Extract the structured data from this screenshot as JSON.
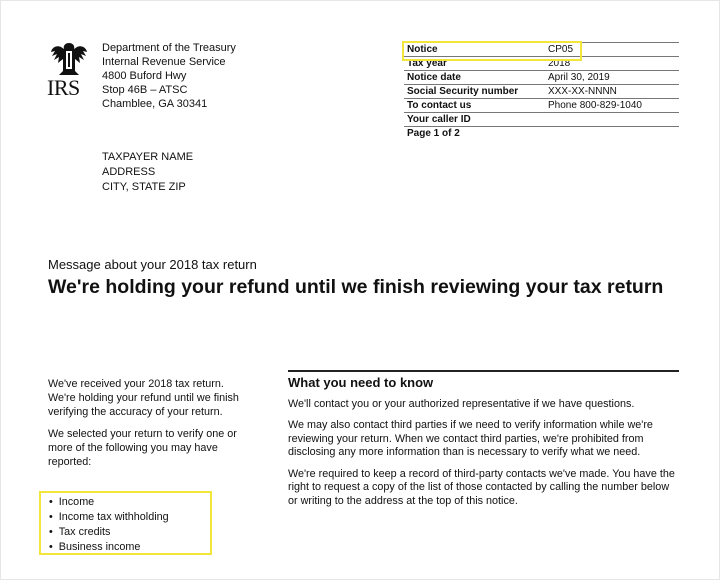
{
  "logo": {
    "text": "IRS",
    "icon": "eagle-seal-icon"
  },
  "sender": [
    "Department of the Treasury",
    "Internal Revenue Service",
    "4800 Buford Hwy",
    "Stop 46B – ATSC",
    "Chamblee, GA 30341"
  ],
  "info": [
    {
      "label": "Notice",
      "value": "CP05"
    },
    {
      "label": "Tax year",
      "value": "2018"
    },
    {
      "label": "Notice date",
      "value": "April 30, 2019"
    },
    {
      "label": "Social Security number",
      "value": "XXX-XX-NNNN"
    },
    {
      "label": "To contact us",
      "value": "Phone 800-829-1040"
    },
    {
      "label": "Your caller ID",
      "value": ""
    },
    {
      "label": "Page 1 of 2",
      "value": ""
    }
  ],
  "highlight_color": "#f2e63a",
  "recipient": [
    "TAXPAYER NAME",
    "ADDRESS",
    "CITY, STATE ZIP"
  ],
  "subtitle": "Message about your 2018 tax return",
  "title": "We're holding your refund until we finish reviewing your tax return",
  "left": {
    "p1": "We've received your 2018 tax return. We're holding your refund until we finish verifying the accuracy of your return.",
    "p2": "We selected your return to verify one or more of the following you may have reported:",
    "bullets": [
      "Income",
      "Income tax withholding",
      "Tax credits",
      "Business income"
    ]
  },
  "right": {
    "heading": "What you need to know",
    "p1": "We'll contact you or your authorized representative if we have questions.",
    "p2": "We may also contact third parties if we need to verify information while we're reviewing your return. When we contact third parties, we're prohibited from disclosing any more information than is necessary to verify what we need.",
    "p3": "We're required to keep a record of third-party contacts we've made. You have the right to request a copy of the list of those contacted by calling the number below or writing to the address at the top of this notice."
  }
}
